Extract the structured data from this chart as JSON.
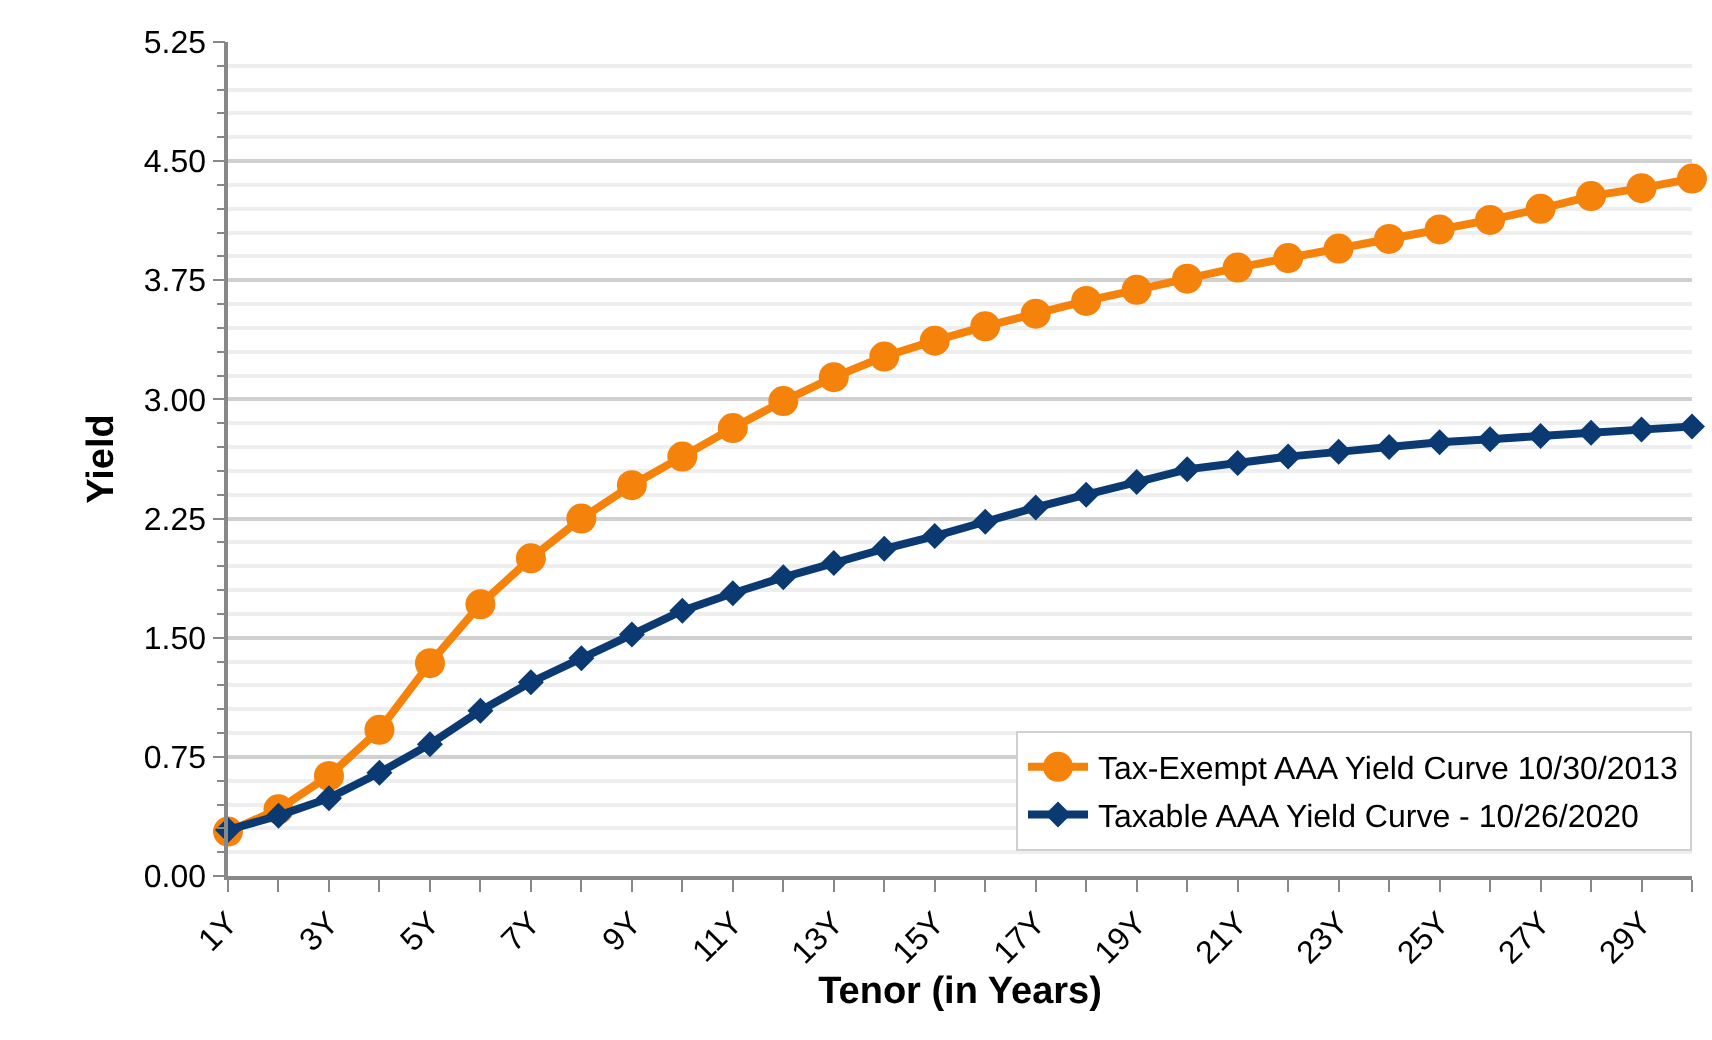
{
  "chart_data": {
    "type": "line",
    "xlabel": "Tenor (in Years)",
    "ylabel": "Yield",
    "categories": [
      "1Y",
      null,
      "3Y",
      null,
      "5Y",
      null,
      "7Y",
      null,
      "9Y",
      null,
      "11Y",
      null,
      "13Y",
      null,
      "15Y",
      null,
      "17Y",
      null,
      "19Y",
      null,
      "21Y",
      null,
      "23Y",
      null,
      "25Y",
      null,
      "27Y",
      null,
      "29Y",
      null
    ],
    "series": [
      {
        "name": "Tax-Exempt AAA Yield Curve 10/30/2013",
        "color": "#f5820a",
        "marker": "circle",
        "values": [
          0.28,
          0.42,
          0.63,
          0.92,
          1.34,
          1.71,
          2.0,
          2.25,
          2.46,
          2.64,
          2.82,
          2.99,
          3.14,
          3.27,
          3.37,
          3.46,
          3.54,
          3.62,
          3.69,
          3.76,
          3.83,
          3.89,
          3.95,
          4.01,
          4.07,
          4.13,
          4.2,
          4.28,
          4.33,
          4.39
        ]
      },
      {
        "name": "Taxable AAA Yield Curve - 10/26/2020",
        "color": "#0b3a73",
        "marker": "diamond",
        "values": [
          0.29,
          0.38,
          0.49,
          0.65,
          0.83,
          1.04,
          1.22,
          1.37,
          1.52,
          1.67,
          1.78,
          1.88,
          1.97,
          2.06,
          2.14,
          2.23,
          2.32,
          2.4,
          2.48,
          2.56,
          2.6,
          2.64,
          2.67,
          2.7,
          2.73,
          2.75,
          2.77,
          2.79,
          2.81,
          2.83
        ]
      }
    ],
    "ylim": [
      0,
      5.25
    ],
    "yticks": [
      {
        "value": 0,
        "label": "0.00"
      },
      {
        "value": 0.75,
        "label": "0.75"
      },
      {
        "value": 1.5,
        "label": "1.50"
      },
      {
        "value": 2.25,
        "label": "2.25"
      },
      {
        "value": 3,
        "label": "3.00"
      },
      {
        "value": 3.75,
        "label": "3.75"
      },
      {
        "value": 4.5,
        "label": "4.50"
      },
      {
        "value": 5.25,
        "label": "5.25"
      }
    ],
    "grid": "y",
    "legend": "bottom right",
    "line_style": "solid"
  }
}
